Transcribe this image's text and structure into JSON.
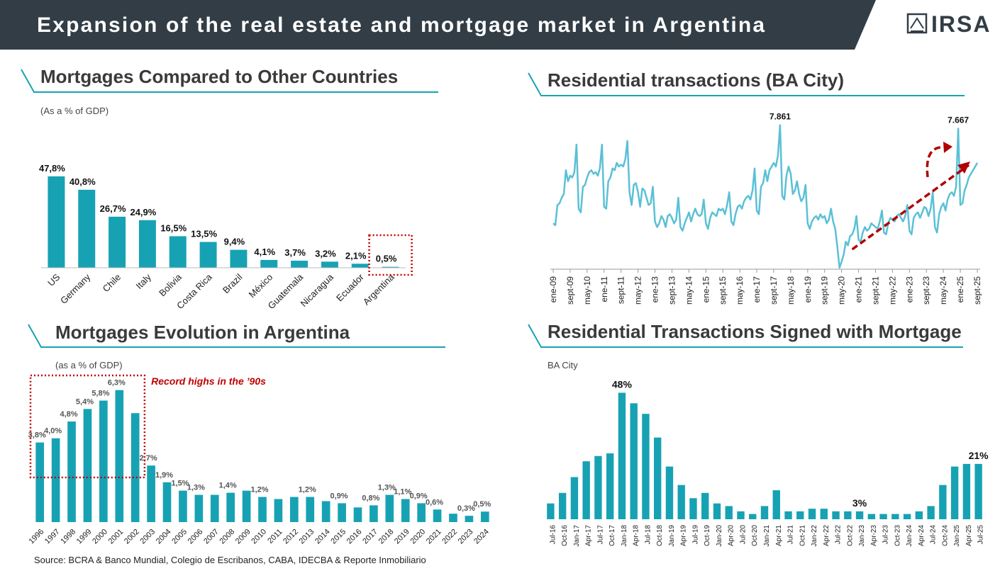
{
  "header": {
    "title": "Expansion of the real estate and mortgage market in Argentina",
    "logo": "IRSA"
  },
  "source": "Source: BCRA & Banco Mundial, Colegio de Escribanos, CABA, IDECBA & Reporte Inmobiliario",
  "chart_data": [
    {
      "type": "bar",
      "title": "Mortgages Compared to Other Countries",
      "subtitle": "(As a % of GDP)",
      "categories": [
        "US",
        "Germany",
        "Chile",
        "Italy",
        "Bolivia",
        "Costa Rica",
        "Brazil",
        "México",
        "Guatemala",
        "Nicaragua",
        "Ecuador",
        "Argentina"
      ],
      "values": [
        47.8,
        40.8,
        26.7,
        24.9,
        16.5,
        13.5,
        9.4,
        4.1,
        3.7,
        3.2,
        2.1,
        0.5
      ],
      "value_labels": [
        "47,8%",
        "40,8%",
        "26,7%",
        "24,9%",
        "16,5%",
        "13,5%",
        "9,4%",
        "4,1%",
        "3,7%",
        "3,2%",
        "2,1%",
        "0,5%"
      ],
      "color": "#17a2b4",
      "ylim": [
        0,
        50
      ]
    },
    {
      "type": "line",
      "title": "Residential transactions (BA City)",
      "categories": [
        "ene-09",
        null,
        null,
        null,
        null,
        null,
        null,
        null,
        "sept-09",
        null,
        null,
        null,
        null,
        null,
        null,
        null,
        "may-10",
        null,
        null,
        null,
        null,
        null,
        null,
        null,
        "ene-11",
        null,
        null,
        null,
        null,
        null,
        null,
        null,
        "sept-11",
        null,
        null,
        null,
        null,
        null,
        null,
        null,
        "may-12",
        null,
        null,
        null,
        null,
        null,
        null,
        null,
        "ene-13",
        null,
        null,
        null,
        null,
        null,
        null,
        null,
        "sept-13",
        null,
        null,
        null,
        null,
        null,
        null,
        null,
        "may-14",
        null,
        null,
        null,
        null,
        null,
        null,
        null,
        "ene-15",
        null,
        null,
        null,
        null,
        null,
        null,
        null,
        "sept-15",
        null,
        null,
        null,
        null,
        null,
        null,
        null,
        "may-16",
        null,
        null,
        null,
        null,
        null,
        null,
        null,
        "ene-17",
        null,
        null,
        null,
        null,
        null,
        null,
        null,
        "sept-17",
        null,
        null,
        null,
        null,
        null,
        null,
        null,
        "may-18",
        null,
        null,
        null,
        null,
        null,
        null,
        null,
        "ene-19",
        null,
        null,
        null,
        null,
        null,
        null,
        null,
        "sept-19",
        null,
        null,
        null,
        null,
        null,
        null,
        null,
        "may-20",
        null,
        null,
        null,
        null,
        null,
        null,
        null,
        "ene-21",
        null,
        null,
        null,
        null,
        null,
        null,
        null,
        "sept-21",
        null,
        null,
        null,
        null,
        null,
        null,
        null,
        "may-22",
        null,
        null,
        null,
        null,
        null,
        null,
        null,
        "ene-23",
        null,
        null,
        null,
        null,
        null,
        null,
        null,
        "sept-23",
        null,
        null,
        null,
        null,
        null,
        null,
        null,
        "may-24",
        null,
        null,
        null,
        null,
        null,
        null,
        null,
        "ene-25",
        null,
        null,
        null,
        null,
        null,
        null,
        null,
        "sept-25"
      ],
      "values": [
        2500,
        2400,
        3500,
        3600,
        3900,
        4100,
        5400,
        4800,
        5100,
        5000,
        5300,
        6800,
        3300,
        3100,
        4500,
        4600,
        5000,
        5300,
        5400,
        5200,
        5300,
        5100,
        5500,
        6800,
        3400,
        3300,
        4800,
        5000,
        5500,
        5400,
        5800,
        5600,
        5700,
        5600,
        6000,
        7000,
        4200,
        3500,
        4600,
        4700,
        4200,
        3400,
        4400,
        4300,
        3900,
        3500,
        3600,
        4500,
        2600,
        2300,
        2500,
        2900,
        2700,
        2300,
        2900,
        3000,
        2800,
        2500,
        2700,
        3900,
        2300,
        2100,
        2500,
        2800,
        3100,
        2600,
        3000,
        3300,
        3000,
        2900,
        3000,
        3800,
        2500,
        2200,
        2800,
        3100,
        3000,
        2900,
        3300,
        3200,
        3300,
        3000,
        3500,
        4200,
        2600,
        2400,
        3000,
        3400,
        3500,
        3300,
        3700,
        3900,
        4000,
        3800,
        4300,
        5500,
        3200,
        3000,
        4500,
        4700,
        5400,
        4800,
        5400,
        5600,
        5800,
        5600,
        6200,
        7861,
        4000,
        3800,
        5100,
        5600,
        5200,
        4100,
        4300,
        4800,
        4100,
        3700,
        3900,
        4600,
        2500,
        2200,
        2600,
        2800,
        2900,
        2700,
        3000,
        2800,
        2900,
        2500,
        2700,
        3300,
        2600,
        2200,
        1200,
        77,
        400,
        800,
        1500,
        1300,
        1800,
        1900,
        2200,
        2900,
        1600,
        1500,
        2000,
        2300,
        2100,
        2200,
        2500,
        2400,
        2300,
        2200,
        2600,
        3200,
        2000,
        1900,
        2500,
        2800,
        2700,
        2600,
        2900,
        3000,
        2800,
        2600,
        2900,
        3500,
        2100,
        1900,
        2800,
        3000,
        3100,
        2800,
        3100,
        3400,
        3300,
        2900,
        3300,
        4200,
        2300,
        2000,
        3000,
        3400,
        3600,
        3200,
        3800,
        4100,
        4200,
        4000,
        4500,
        7667,
        3500,
        3600,
        4300,
        4600,
        5000,
        5200,
        5400,
        5600,
        5800
      ],
      "annotations": [
        {
          "label": "7.861",
          "value": 7861
        },
        {
          "label": "7.667",
          "value": 7667
        }
      ],
      "color": "#5bc0d6",
      "ylim": [
        0,
        8000
      ]
    },
    {
      "type": "bar",
      "title": "Mortgages Evolution in Argentina",
      "subtitle": "(as a % of GDP)",
      "annotation": "Record highs in the ’90s",
      "categories": [
        "1996",
        "1997",
        "1998",
        "1999",
        "2000",
        "2001",
        "2002",
        "2003",
        "2004",
        "2005",
        "2006",
        "2007",
        "2008",
        "2009",
        "2010",
        "2011",
        "2012",
        "2013",
        "2014",
        "2015",
        "2016",
        "2017",
        "2018",
        "2019",
        "2020",
        "2021",
        "2022",
        "2023",
        "2024"
      ],
      "values": [
        3.8,
        4.0,
        4.8,
        5.4,
        5.8,
        6.3,
        5.2,
        2.7,
        1.9,
        1.5,
        1.3,
        1.3,
        1.4,
        1.5,
        1.2,
        1.1,
        1.2,
        1.2,
        1.0,
        0.9,
        0.7,
        0.8,
        1.3,
        1.1,
        0.9,
        0.6,
        0.4,
        0.3,
        0.5
      ],
      "value_labels": [
        "3,8%",
        "4,0%",
        "4,8%",
        "5,4%",
        "5,8%",
        "6,3%",
        null,
        "2,7%",
        "1,9%",
        "1,5%",
        "1,3%",
        null,
        "1,4%",
        null,
        "1,2%",
        null,
        null,
        "1,2%",
        null,
        "0,9%",
        null,
        "0,8%",
        "1,3%",
        "1,1%",
        "0,9%",
        "0,6%",
        null,
        "0,3%",
        "0,5%"
      ],
      "color": "#17a2b4",
      "ylim": [
        0,
        7
      ]
    },
    {
      "type": "bar",
      "title": "Residential Transactions Signed with Mortgage",
      "subtitle": "BA City",
      "categories": [
        "Jul-16",
        "Oct-16",
        "Jan-17",
        "Apr-17",
        "Jul-17",
        "Oct-17",
        "Jan-18",
        "Apr-18",
        "Jul-18",
        "Oct-18",
        "Jan-19",
        "Apr-19",
        "Jul-19",
        "Oct-19",
        "Jan-20",
        "Apr-20",
        "Jul-20",
        "Oct-20",
        "Jan-21",
        "Apr-21",
        "Jul-21",
        "Oct-21",
        "Jan-22",
        "Apr-22",
        "Jul-22",
        "Oct-22",
        "Jan-23",
        "Apr-23",
        "Jul-23",
        "Oct-23",
        "Jan-24",
        "Apr-24",
        "Jul-24",
        "Oct-24",
        "Jan-25",
        "Apr-25",
        "Jul-25"
      ],
      "values": [
        6,
        10,
        16,
        22,
        24,
        25,
        48,
        44,
        40,
        31,
        20,
        13,
        8,
        10,
        6,
        5,
        3,
        2,
        5,
        11,
        3,
        3,
        4,
        4,
        3,
        3,
        3,
        2,
        2,
        2,
        2,
        3,
        5,
        13,
        20,
        21,
        21
      ],
      "value_labels": [
        null,
        null,
        null,
        null,
        null,
        null,
        "48%",
        null,
        null,
        null,
        null,
        null,
        null,
        null,
        null,
        null,
        null,
        null,
        null,
        null,
        null,
        null,
        null,
        null,
        null,
        null,
        "3%",
        null,
        null,
        null,
        null,
        null,
        null,
        null,
        null,
        null,
        "21%"
      ],
      "color": "#17a2b4",
      "ylim": [
        0,
        50
      ]
    }
  ]
}
